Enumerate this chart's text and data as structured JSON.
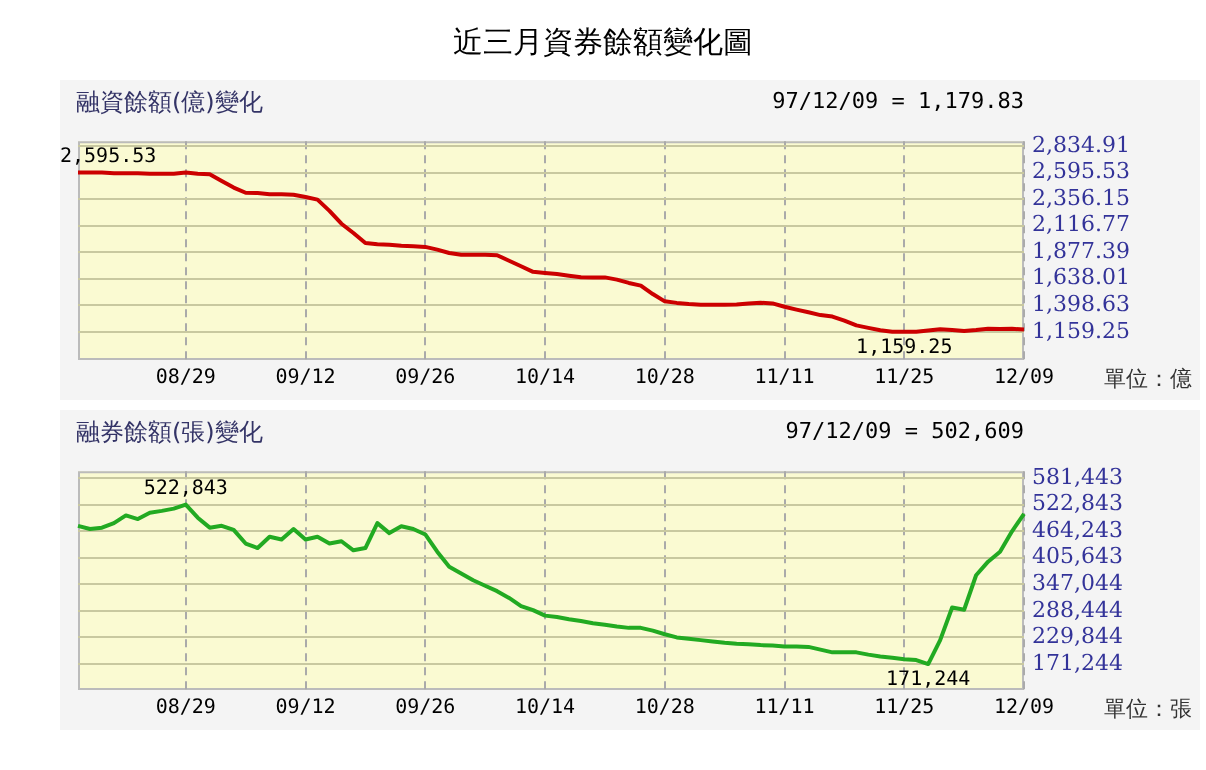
{
  "chart_data": [
    {
      "type": "line",
      "title": "近三月資券餘額變化圖",
      "subtitle": "融資餘額(億)變化",
      "ylabel": "單位：億",
      "annotations": [
        "97/12/09 = 1,179.83",
        {
          "text": "2,595.53",
          "y": 2595.53
        },
        {
          "text": "1,159.25",
          "y": 1159.25
        }
      ],
      "categories": [
        null,
        null,
        null,
        null,
        null,
        null,
        null,
        null,
        null,
        "08/29",
        null,
        null,
        null,
        null,
        null,
        null,
        null,
        null,
        null,
        "09/12",
        null,
        null,
        null,
        null,
        null,
        null,
        null,
        null,
        null,
        "09/26",
        null,
        null,
        null,
        null,
        null,
        null,
        null,
        null,
        null,
        "10/14",
        null,
        null,
        null,
        null,
        null,
        null,
        null,
        null,
        null,
        "10/28",
        null,
        null,
        null,
        null,
        null,
        null,
        null,
        null,
        null,
        "11/11",
        null,
        null,
        null,
        null,
        null,
        null,
        null,
        null,
        null,
        "11/25",
        null,
        null,
        null,
        null,
        null,
        null,
        null,
        null,
        null,
        "12/09"
      ],
      "series": [
        {
          "color": "#cc0000",
          "values": [
            2595.53,
            2595,
            2595,
            2590,
            2590,
            2590,
            2585,
            2585,
            2585,
            2595,
            2585,
            2580,
            2520,
            2460,
            2413,
            2410,
            2400,
            2400,
            2395,
            2375,
            2351,
            2250,
            2134,
            2050,
            1960,
            1948,
            1945,
            1935,
            1930,
            1925,
            1900,
            1870,
            1855,
            1855,
            1855,
            1850,
            1800,
            1750,
            1700,
            1690,
            1680,
            1665,
            1651,
            1650,
            1650,
            1630,
            1600,
            1576,
            1500,
            1434,
            1420,
            1410,
            1403,
            1403,
            1403,
            1405,
            1415,
            1421,
            1415,
            1385,
            1359,
            1335,
            1310,
            1297,
            1260,
            1217,
            1195,
            1173,
            1160,
            1159.25,
            1160,
            1170,
            1182,
            1175,
            1167,
            1175,
            1186,
            1185,
            1186,
            1179.83
          ]
        }
      ],
      "ylim": [
        905,
        2878
      ],
      "yticks": [
        {
          "value": 1159.25,
          "label": "1,159.25"
        },
        {
          "value": 1398.63,
          "label": "1,398.63"
        },
        {
          "value": 1638.01,
          "label": "1,638.01"
        },
        {
          "value": 1877.39,
          "label": "1,877.39"
        },
        {
          "value": 2116.77,
          "label": "2,116.77"
        },
        {
          "value": 2356.15,
          "label": "2,356.15"
        },
        {
          "value": 2595.53,
          "label": "2,595.53"
        },
        {
          "value": 2834.91,
          "label": "2,834.91"
        }
      ],
      "grid": true,
      "legend": false,
      "marker": "none",
      "line_style": "solid"
    },
    {
      "type": "line",
      "title": "融券餘額(張)變化",
      "ylabel": "單位：張",
      "annotations": [
        "97/12/09 = 502,609",
        {
          "text": "522,843",
          "y": 522843
        },
        {
          "text": "171,244",
          "y": 171244
        }
      ],
      "categories": [
        null,
        null,
        null,
        null,
        null,
        null,
        null,
        null,
        null,
        "08/29",
        null,
        null,
        null,
        null,
        null,
        null,
        null,
        null,
        null,
        "09/12",
        null,
        null,
        null,
        null,
        null,
        null,
        null,
        null,
        null,
        "09/26",
        null,
        null,
        null,
        null,
        null,
        null,
        null,
        null,
        null,
        "10/14",
        null,
        null,
        null,
        null,
        null,
        null,
        null,
        null,
        null,
        "10/28",
        null,
        null,
        null,
        null,
        null,
        null,
        null,
        null,
        null,
        "11/11",
        null,
        null,
        null,
        null,
        null,
        null,
        null,
        null,
        null,
        "11/25",
        null,
        null,
        null,
        null,
        null,
        null,
        null,
        null,
        null,
        "12/09"
      ],
      "series": [
        {
          "color": "#22aa22",
          "values": [
            476000,
            469000,
            472000,
            482000,
            499000,
            491000,
            505000,
            509000,
            514000,
            522843,
            494000,
            472000,
            476000,
            467000,
            437000,
            427000,
            452000,
            446000,
            469000,
            446000,
            452000,
            437000,
            442000,
            422000,
            427000,
            482000,
            460000,
            475000,
            469000,
            457000,
            419000,
            386000,
            371000,
            356000,
            344000,
            332000,
            317000,
            299000,
            290000,
            278000,
            275000,
            270000,
            266000,
            261000,
            258000,
            254000,
            251000,
            251000,
            245000,
            237000,
            230000,
            227000,
            224000,
            221000,
            218000,
            216000,
            215000,
            213000,
            212000,
            210000,
            210000,
            209000,
            203000,
            197000,
            197000,
            197000,
            192000,
            188000,
            185000,
            182000,
            180000,
            171244,
            224000,
            296000,
            291000,
            367000,
            397000,
            419000,
            464000,
            502609
          ]
        }
      ],
      "ylim": [
        114000,
        596500
      ],
      "yticks": [
        {
          "value": 171244,
          "label": "171,244"
        },
        {
          "value": 229844,
          "label": "229,844"
        },
        {
          "value": 288444,
          "label": "288,444"
        },
        {
          "value": 347044,
          "label": "347,044"
        },
        {
          "value": 405643,
          "label": "405,643"
        },
        {
          "value": 464243,
          "label": "464,243"
        },
        {
          "value": 522843,
          "label": "522,843"
        },
        {
          "value": 581443,
          "label": "581,443"
        }
      ],
      "grid": true,
      "legend": false,
      "marker": "none",
      "line_style": "solid"
    }
  ]
}
